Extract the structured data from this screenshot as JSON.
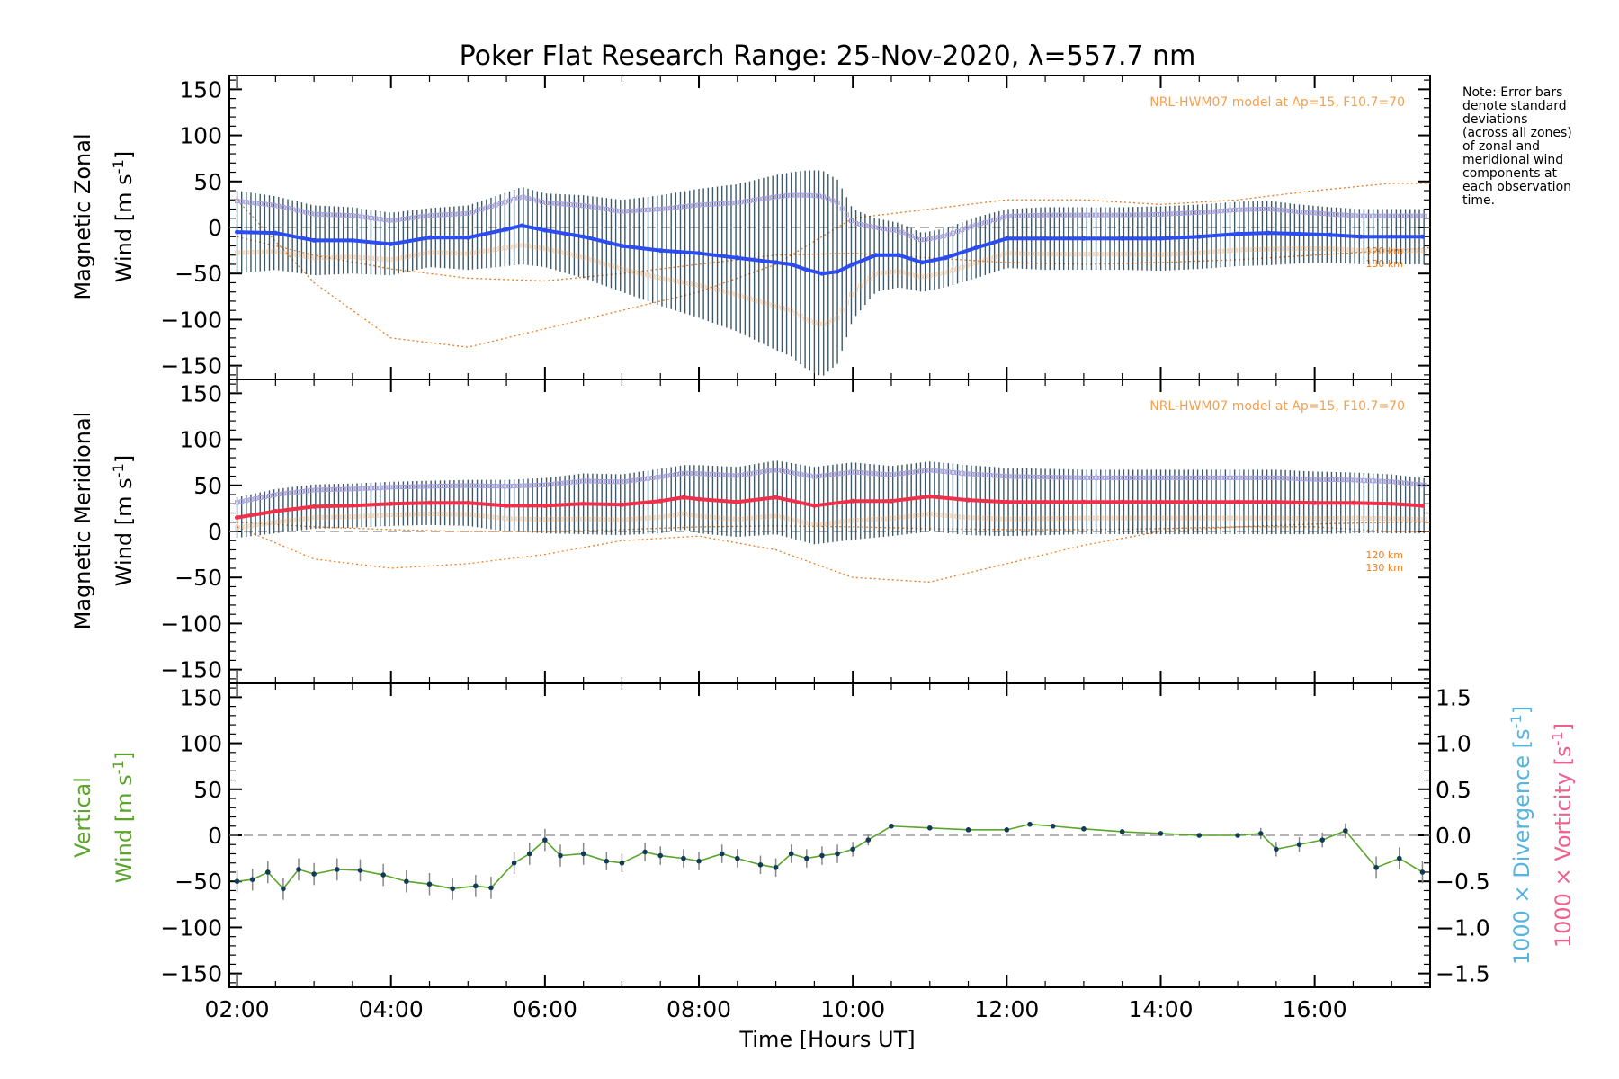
{
  "figure": {
    "title": "Poker Flat Research Range: 25-Nov-2020, λ=557.7 nm",
    "xlabel": "Time [Hours UT]",
    "x_tick_labels": [
      "02:00",
      "04:00",
      "06:00",
      "08:00",
      "10:00",
      "12:00",
      "14:00",
      "16:00"
    ],
    "note_lines": [
      "Note: Error bars",
      "denote standard",
      "deviations",
      "(across all zones)",
      "of zonal and",
      "meridional wind",
      "components at",
      "each observation",
      "time."
    ]
  },
  "colors": {
    "zonal": "#2b4cf0",
    "zonal_light": "#4aa3e0",
    "meridional": "#f0304a",
    "meridional_light": "#ff5a8c",
    "vertical": "#5aa52a",
    "vertical_points": "#123b5a",
    "model": "#f07c1e",
    "model_text": "#f5a050",
    "zone_points": "#a79be0",
    "error_bars": "#1b3d52",
    "divergence_label": "#55b4e0",
    "vorticity_label": "#f0608c"
  },
  "chart_data": [
    {
      "type": "line",
      "panel": "zonal",
      "ylabel_line1": "Magnetic Zonal",
      "ylabel_line2": "Wind [m s-1]",
      "y_tick_labels": [
        "150",
        "100",
        "50",
        "0",
        "−50",
        "−100",
        "−150"
      ],
      "model_label": "NRL-HWM07 model at Ap=15, F10.7=70",
      "altitude_labels": [
        "120 km",
        "130 km"
      ],
      "xlim": [
        1.9,
        17.5
      ],
      "ylim": [
        -165,
        165
      ],
      "x": [
        2.0,
        2.5,
        3.0,
        3.5,
        4.0,
        4.5,
        5.0,
        5.5,
        5.7,
        6.0,
        6.5,
        7.0,
        7.5,
        8.0,
        8.5,
        9.0,
        9.2,
        9.4,
        9.6,
        9.8,
        10.0,
        10.3,
        10.6,
        10.9,
        11.2,
        11.6,
        12.0,
        12.5,
        13.0,
        13.5,
        14.0,
        14.5,
        15.0,
        15.4,
        15.8,
        16.2,
        16.6,
        17.0,
        17.4
      ],
      "values": [
        -5,
        -6,
        -14,
        -14,
        -18,
        -11,
        -11,
        -2,
        2,
        -3,
        -10,
        -20,
        -25,
        -28,
        -33,
        -38,
        -40,
        -46,
        -50,
        -48,
        -40,
        -30,
        -30,
        -38,
        -33,
        -22,
        -12,
        -12,
        -12,
        -12,
        -12,
        -10,
        -7,
        -6,
        -7,
        -8,
        -10,
        -10,
        -10
      ],
      "error_std": [
        45,
        40,
        38,
        36,
        34,
        32,
        35,
        40,
        42,
        40,
        45,
        50,
        60,
        70,
        80,
        95,
        100,
        108,
        112,
        100,
        60,
        40,
        35,
        32,
        32,
        33,
        32,
        34,
        34,
        34,
        35,
        35,
        35,
        35,
        32,
        30,
        30,
        30,
        30
      ],
      "model_120km": {
        "x": [
          2.0,
          3.0,
          4.0,
          5.0,
          6.0,
          7.0,
          8.0,
          9.0,
          10.0,
          11.0,
          12.0,
          13.0,
          14.0,
          15.0,
          16.0,
          17.0,
          17.5
        ],
        "values": [
          -10,
          -30,
          -45,
          -55,
          -58,
          -50,
          -40,
          -30,
          -28,
          -33,
          -38,
          -40,
          -38,
          -35,
          -30,
          -25,
          -22
        ]
      },
      "model_130km": {
        "x": [
          2.0,
          3.0,
          4.0,
          5.0,
          6.0,
          7.0,
          8.0,
          9.0,
          10.0,
          11.0,
          12.0,
          13.0,
          14.0,
          15.0,
          16.0,
          17.0,
          17.5
        ],
        "values": [
          30,
          -60,
          -120,
          -130,
          -110,
          -90,
          -70,
          -40,
          10,
          20,
          30,
          30,
          25,
          30,
          40,
          48,
          48
        ]
      }
    },
    {
      "type": "line",
      "panel": "meridional",
      "ylabel_line1": "Magnetic Meridional",
      "ylabel_line2": "Wind [m s-1]",
      "y_tick_labels": [
        "150",
        "100",
        "50",
        "0",
        "−50",
        "−100",
        "−150"
      ],
      "model_label": "NRL-HWM07 model at Ap=15, F10.7=70",
      "altitude_labels": [
        "120 km",
        "130 km"
      ],
      "xlim": [
        1.9,
        17.5
      ],
      "ylim": [
        -165,
        165
      ],
      "x": [
        2.0,
        2.5,
        3.0,
        3.5,
        4.0,
        4.5,
        5.0,
        5.5,
        6.0,
        6.5,
        7.0,
        7.5,
        7.8,
        8.0,
        8.5,
        9.0,
        9.5,
        10.0,
        10.5,
        11.0,
        11.5,
        12.0,
        12.5,
        13.0,
        13.5,
        14.0,
        14.5,
        15.0,
        15.5,
        16.0,
        16.5,
        17.0,
        17.4
      ],
      "values": [
        15,
        22,
        27,
        28,
        30,
        31,
        31,
        28,
        28,
        30,
        29,
        33,
        37,
        35,
        32,
        37,
        28,
        33,
        33,
        38,
        34,
        32,
        32,
        32,
        32,
        32,
        32,
        32,
        32,
        31,
        31,
        30,
        28
      ],
      "error_std": [
        22,
        24,
        24,
        24,
        24,
        24,
        25,
        28,
        30,
        33,
        33,
        35,
        35,
        37,
        38,
        40,
        42,
        42,
        38,
        38,
        38,
        37,
        36,
        35,
        35,
        35,
        35,
        35,
        35,
        34,
        33,
        32,
        30
      ],
      "model_120km": {
        "x": [
          2.0,
          3.0,
          4.0,
          5.0,
          6.0,
          7.0,
          8.0,
          9.0,
          10.0,
          11.0,
          12.0,
          13.0,
          14.0,
          15.0,
          16.0,
          17.0,
          17.5
        ],
        "values": [
          10,
          5,
          2,
          0,
          0,
          2,
          5,
          6,
          5,
          3,
          2,
          2,
          3,
          5,
          8,
          10,
          10
        ]
      },
      "model_130km": {
        "x": [
          2.0,
          3.0,
          4.0,
          5.0,
          6.0,
          7.0,
          8.0,
          9.0,
          10.0,
          11.0,
          12.0,
          13.0,
          14.0,
          15.0,
          16.0,
          17.0,
          17.5
        ],
        "values": [
          5,
          -30,
          -40,
          -35,
          -25,
          -10,
          -5,
          -20,
          -50,
          -55,
          -35,
          -15,
          0,
          5,
          5,
          0,
          0
        ]
      }
    },
    {
      "type": "line",
      "panel": "vertical",
      "ylabel_line1": "Vertical",
      "ylabel_line2": "Wind [m s-1]",
      "y_tick_labels": [
        "150",
        "100",
        "50",
        "0",
        "−50",
        "−100",
        "−150"
      ],
      "y2_tick_labels": [
        "1.5",
        "1.0",
        "0.5",
        "0.0",
        "−0.5",
        "−1.0",
        "−1.5"
      ],
      "y2_label_divergence": "1000 × Divergence [s-1]",
      "y2_label_vorticity": "1000 × Vorticity [s-1]",
      "xlim": [
        1.9,
        17.5
      ],
      "ylim": [
        -165,
        165
      ],
      "y2lim": [
        -1.65,
        1.65
      ],
      "x": [
        2.0,
        2.2,
        2.4,
        2.6,
        2.8,
        3.0,
        3.3,
        3.6,
        3.9,
        4.2,
        4.5,
        4.8,
        5.1,
        5.3,
        5.6,
        5.8,
        6.0,
        6.2,
        6.5,
        6.8,
        7.0,
        7.3,
        7.5,
        7.8,
        8.0,
        8.3,
        8.5,
        8.8,
        9.0,
        9.2,
        9.4,
        9.6,
        9.8,
        10.0,
        10.2,
        10.5,
        11.0,
        11.5,
        12.0,
        12.3,
        12.6,
        13.0,
        13.5,
        14.0,
        14.5,
        15.0,
        15.3,
        15.5,
        15.8,
        16.1,
        16.4,
        16.8,
        17.1,
        17.4
      ],
      "values": [
        -50,
        -48,
        -40,
        -58,
        -37,
        -42,
        -37,
        -38,
        -43,
        -50,
        -53,
        -58,
        -55,
        -57,
        -30,
        -20,
        -5,
        -22,
        -20,
        -28,
        -30,
        -18,
        -22,
        -25,
        -28,
        -20,
        -25,
        -32,
        -35,
        -20,
        -25,
        -22,
        -20,
        -15,
        -5,
        10,
        8,
        6,
        6,
        12,
        10,
        7,
        4,
        2,
        0,
        0,
        2,
        -15,
        -10,
        -5,
        5,
        -35,
        -25,
        -40
      ],
      "error_std": [
        12,
        12,
        12,
        12,
        12,
        12,
        12,
        12,
        12,
        12,
        12,
        12,
        12,
        12,
        12,
        12,
        12,
        12,
        12,
        10,
        10,
        10,
        10,
        10,
        10,
        10,
        10,
        10,
        10,
        10,
        10,
        10,
        10,
        8,
        6,
        2,
        2,
        2,
        2,
        2,
        2,
        2,
        2,
        2,
        2,
        2,
        6,
        8,
        8,
        8,
        8,
        12,
        12,
        12
      ]
    }
  ]
}
